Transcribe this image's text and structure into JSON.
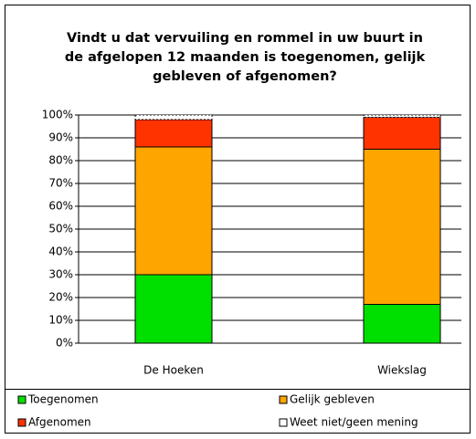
{
  "chart_data": {
    "type": "stacked_bar",
    "title": [
      "Vindt u dat vervuiling en rommel in uw buurt in",
      "de afgelopen 12 maanden is toegenomen, gelijk",
      "gebleven of afgenomen?"
    ],
    "categories": [
      "De Hoeken",
      "Wiekslag"
    ],
    "series": [
      {
        "name": "Toegenomen",
        "color": "#00e000",
        "values": [
          30,
          17
        ]
      },
      {
        "name": "Gelijk gebleven",
        "color": "#ffa500",
        "values": [
          56,
          68
        ]
      },
      {
        "name": "Afgenomen",
        "color": "#ff3300",
        "values": [
          12,
          14
        ]
      },
      {
        "name": "Weet niet/geen mening",
        "color": "#ffffff",
        "values": [
          2,
          1
        ]
      }
    ],
    "ylim": [
      0,
      100
    ],
    "yticks": [
      {
        "value": 0,
        "label": "0%"
      },
      {
        "value": 10,
        "label": "10%"
      },
      {
        "value": 20,
        "label": "20%"
      },
      {
        "value": 30,
        "label": "30%"
      },
      {
        "value": 40,
        "label": "40%"
      },
      {
        "value": 50,
        "label": "50%"
      },
      {
        "value": 60,
        "label": "60%"
      },
      {
        "value": 70,
        "label": "70%"
      },
      {
        "value": 80,
        "label": "80%"
      },
      {
        "value": 90,
        "label": "90%"
      },
      {
        "value": 100,
        "label": "100%"
      }
    ],
    "grid": true
  }
}
